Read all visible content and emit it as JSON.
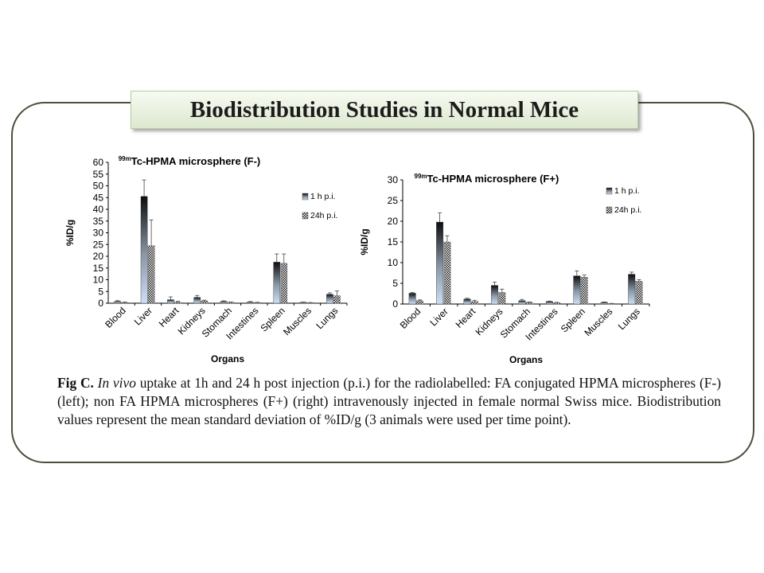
{
  "slide_title": "Biodistribution Studies in Normal Mice",
  "caption": {
    "label": "Fig C.",
    "italic": "In vivo",
    "text": " uptake at 1h and 24 h post injection (p.i.) for the radiolabelled: FA conjugated HPMA microspheres (F-) (left); non FA HPMA microspheres (F+) (right)  intravenously injected in female normal Swiss mice. Biodistribution values represent the mean standard deviation of %ID/g (3 animals were used per time point)."
  },
  "colors": {
    "frame": "#4e4e3e",
    "title_bg_top": "#f7faf2",
    "title_bg_bottom": "#dde8cf",
    "bar_1h_top": "#0d0d0d",
    "bar_1h_bottom": "#cbdff5",
    "bar_24h_check": "#1a1a1a"
  },
  "chart_data": [
    {
      "type": "bar",
      "title_sup": "99m",
      "title": "Tc-HPMA microsphere (F-)",
      "xlabel": "Organs",
      "ylabel": "%ID/g",
      "ylim": [
        0,
        60
      ],
      "yticks": [
        0,
        5,
        10,
        15,
        20,
        25,
        30,
        35,
        40,
        45,
        50,
        55,
        60
      ],
      "categories": [
        "Blood",
        "Liver",
        "Heart",
        "Kidneys",
        "Stomach",
        "Intestines",
        "Spleen",
        "Muscles",
        "Lungs"
      ],
      "legend_position": "right",
      "series": [
        {
          "name": "1 h p.i.",
          "values": [
            0.8,
            45.5,
            1.5,
            2.5,
            0.8,
            0.5,
            17.5,
            0.4,
            3.8
          ],
          "errors": [
            0.3,
            7.0,
            1.2,
            0.8,
            0.2,
            0.2,
            3.5,
            0.1,
            0.6
          ]
        },
        {
          "name": "24h p.i.",
          "values": [
            0.3,
            24.5,
            0.5,
            1.0,
            0.4,
            0.3,
            17.0,
            0.2,
            3.2
          ],
          "errors": [
            0.2,
            11.0,
            0.3,
            0.3,
            0.1,
            0.1,
            4.0,
            0.1,
            2.0
          ]
        }
      ]
    },
    {
      "type": "bar",
      "title_sup": "99m",
      "title": "Tc-HPMA microsphere (F+)",
      "xlabel": "Organs",
      "ylabel": "%ID/g",
      "ylim": [
        0,
        30
      ],
      "yticks": [
        0,
        5,
        10,
        15,
        20,
        25,
        30
      ],
      "categories": [
        "Blood",
        "Liver",
        "Heart",
        "Kidneys",
        "Stomach",
        "Intestines",
        "Spleen",
        "Muscles",
        "Lungs"
      ],
      "legend_position": "top-right",
      "series": [
        {
          "name": "1 h p.i.",
          "values": [
            2.6,
            19.8,
            1.2,
            4.5,
            0.8,
            0.6,
            6.8,
            0.4,
            7.2
          ],
          "errors": [
            0.2,
            2.2,
            0.2,
            0.8,
            0.3,
            0.1,
            1.2,
            0.1,
            0.5
          ]
        },
        {
          "name": "24h p.i.",
          "values": [
            0.8,
            15.0,
            0.6,
            2.8,
            0.4,
            0.3,
            6.5,
            0.1,
            5.5
          ],
          "errors": [
            0.2,
            1.5,
            0.3,
            0.8,
            0.1,
            0.1,
            0.5,
            0.05,
            0.4
          ]
        }
      ]
    }
  ]
}
